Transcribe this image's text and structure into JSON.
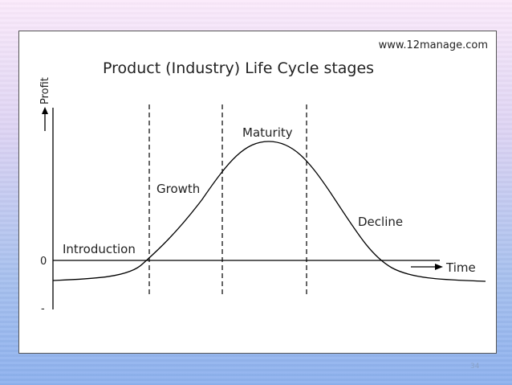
{
  "source": "www.12manage.com",
  "title": "Product (Industry) Life Cycle stages",
  "axes": {
    "y_label": "Profit",
    "x_label": "Time",
    "zero_label": "0",
    "minus_label": "-"
  },
  "stages": {
    "introduction": "Introduction",
    "growth": "Growth",
    "maturity": "Maturity",
    "decline": "Decline"
  },
  "page_number": "34",
  "colors": {
    "line": "#000000",
    "text": "#222222",
    "background_top": "#fbeafb",
    "background_bottom": "#8db1ee"
  }
}
